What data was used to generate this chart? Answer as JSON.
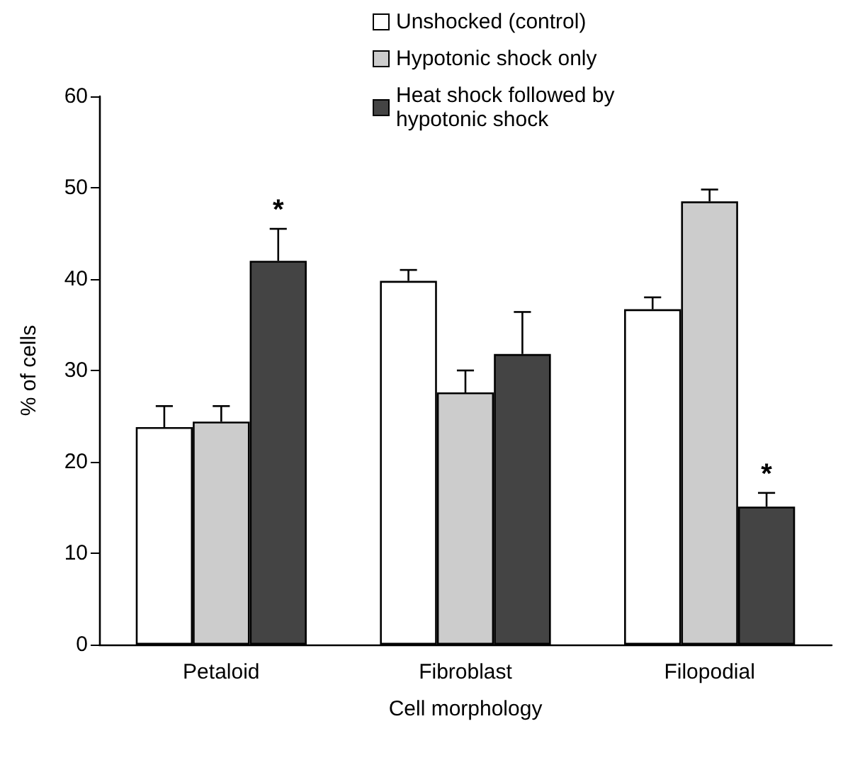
{
  "chart_data": {
    "type": "bar",
    "xlabel": "Cell morphology",
    "ylabel": "% of cells",
    "categories": [
      "Petaloid",
      "Fibroblast",
      "Filopodial"
    ],
    "series": [
      {
        "name": "Unshocked (control)",
        "color": "#ffffff",
        "values": [
          23.8,
          39.8,
          36.7
        ],
        "errors": [
          [
            23.8,
            26.1
          ],
          [
            39.8,
            41.0
          ],
          [
            36.7,
            38.0
          ]
        ]
      },
      {
        "name": "Hypotonic shock only",
        "color": "#cccccc",
        "values": [
          24.4,
          27.6,
          48.5
        ],
        "errors": [
          [
            24.4,
            26.1
          ],
          [
            27.6,
            30.0
          ],
          [
            48.5,
            49.8
          ]
        ]
      },
      {
        "name": "Heat shock followed by hypotonic shock",
        "color": "#444444",
        "values": [
          42.0,
          31.8,
          15.1
        ],
        "value_labels": [
          "*",
          null,
          "*"
        ],
        "errors": [
          [
            42.0,
            45.5
          ],
          [
            31.8,
            36.4
          ],
          [
            15.1,
            16.6
          ]
        ]
      }
    ],
    "ylim": [
      0,
      60
    ],
    "yticks": [
      0,
      10,
      20,
      30,
      40,
      50,
      60
    ],
    "grid": false,
    "legend": "top right"
  }
}
